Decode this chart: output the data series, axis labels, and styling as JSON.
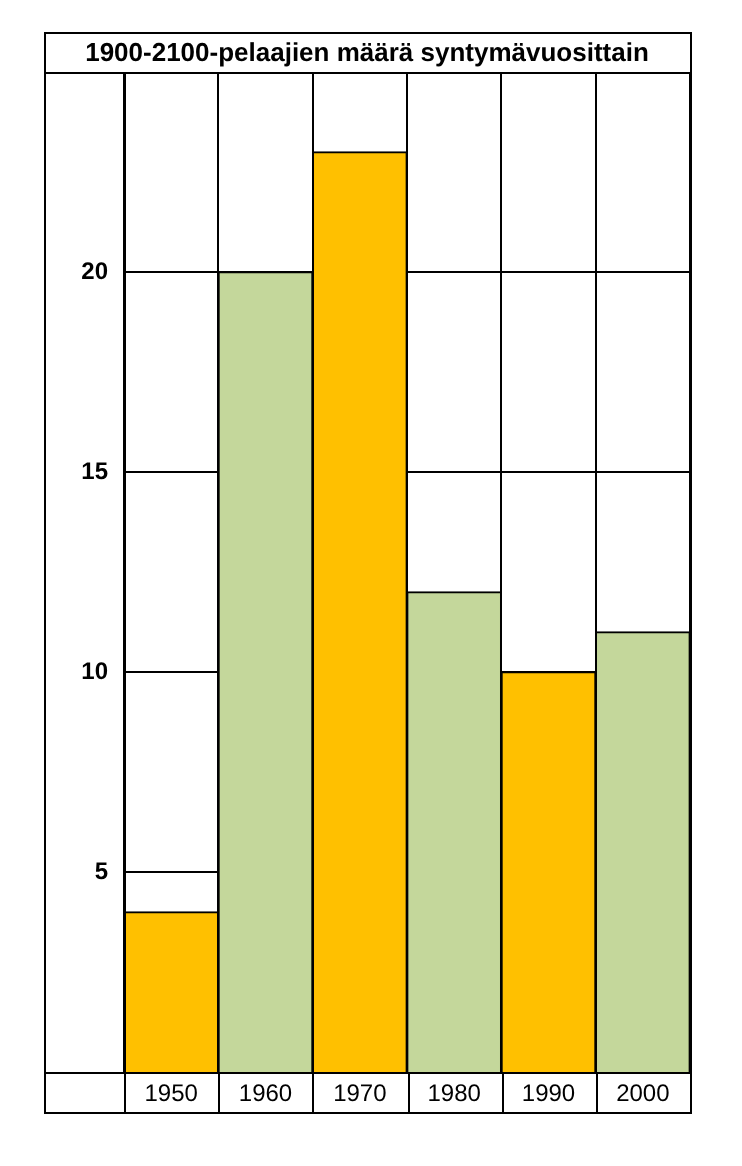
{
  "chart_data": {
    "type": "bar",
    "title": "1900-2100-pelaajien määrä syntymävuosittain",
    "categories": [
      "1950",
      "1960",
      "1970",
      "1980",
      "1990",
      "2000"
    ],
    "values": [
      4,
      20,
      23,
      12,
      10,
      11
    ],
    "colors": [
      "#ffc000",
      "#c4d79b",
      "#ffc000",
      "#c4d79b",
      "#ffc000",
      "#c4d79b"
    ],
    "ylim": [
      0,
      25
    ],
    "yticks": [
      5,
      10,
      15,
      20
    ],
    "grid": true
  }
}
